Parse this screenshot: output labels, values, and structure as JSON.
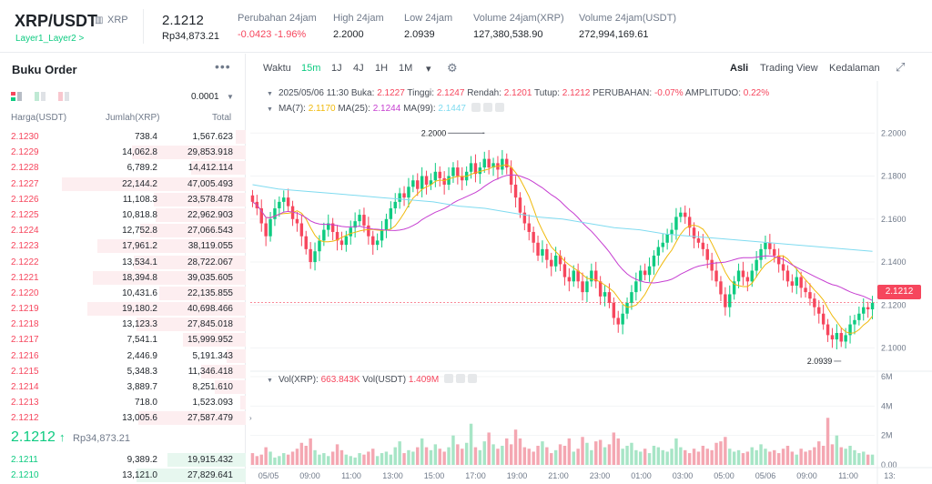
{
  "header": {
    "pair": "XRP/USDT",
    "pair_sub": "XRP",
    "tag": "Layer1_Layer2 >",
    "last_price": "2.1212",
    "last_price_rp": "Rp34,873.21",
    "stats": [
      {
        "label": "Perubahan 24jam",
        "value": "-0.0423 -1.96%",
        "red": true
      },
      {
        "label": "High 24jam",
        "value": "2.2000",
        "red": false
      },
      {
        "label": "Low 24jam",
        "value": "2.0939",
        "red": false
      },
      {
        "label": "Volume 24jam(XRP)",
        "value": "127,380,538.90",
        "red": false
      },
      {
        "label": "Volume 24jam(USDT)",
        "value": "272,994,169.61",
        "red": false
      }
    ]
  },
  "orderbook": {
    "title": "Buku Order",
    "more": "•••",
    "precision": "0.0001",
    "col_price": "Harga(USDT)",
    "col_amount": "Jumlah(XRP)",
    "col_total": "Total",
    "asks": [
      {
        "price": "2.1230",
        "qty": "738.4",
        "total": "1,567.623",
        "depth": 0.05
      },
      {
        "price": "2.1229",
        "qty": "14,062.8",
        "total": "29,853.918",
        "depth": 0.58
      },
      {
        "price": "2.1228",
        "qty": "6,789.2",
        "total": "14,412.114",
        "depth": 0.28
      },
      {
        "price": "2.1227",
        "qty": "22,144.2",
        "total": "47,005.493",
        "depth": 0.94
      },
      {
        "price": "2.1226",
        "qty": "11,108.3",
        "total": "23,578.478",
        "depth": 0.47
      },
      {
        "price": "2.1225",
        "qty": "10,818.8",
        "total": "22,962.903",
        "depth": 0.46
      },
      {
        "price": "2.1224",
        "qty": "12,752.8",
        "total": "27,066.543",
        "depth": 0.54
      },
      {
        "price": "2.1223",
        "qty": "17,961.2",
        "total": "38,119.055",
        "depth": 0.76
      },
      {
        "price": "2.1222",
        "qty": "13,534.1",
        "total": "28,722.067",
        "depth": 0.57
      },
      {
        "price": "2.1221",
        "qty": "18,394.8",
        "total": "39,035.605",
        "depth": 0.78
      },
      {
        "price": "2.1220",
        "qty": "10,431.6",
        "total": "22,135.855",
        "depth": 0.44
      },
      {
        "price": "2.1219",
        "qty": "19,180.2",
        "total": "40,698.466",
        "depth": 0.81
      },
      {
        "price": "2.1218",
        "qty": "13,123.3",
        "total": "27,845.018",
        "depth": 0.56
      },
      {
        "price": "2.1217",
        "qty": "7,541.1",
        "total": "15,999.952",
        "depth": 0.32
      },
      {
        "price": "2.1216",
        "qty": "2,446.9",
        "total": "5,191.343",
        "depth": 0.1
      },
      {
        "price": "2.1215",
        "qty": "5,348.3",
        "total": "11,346.418",
        "depth": 0.23
      },
      {
        "price": "2.1214",
        "qty": "3,889.7",
        "total": "8,251.610",
        "depth": 0.16
      },
      {
        "price": "2.1213",
        "qty": "718.0",
        "total": "1,523.093",
        "depth": 0.03
      },
      {
        "price": "2.1212",
        "qty": "13,005.6",
        "total": "27,587.479",
        "depth": 0.55
      }
    ],
    "last_price": "2.1212",
    "last_arrow": "↑",
    "last_rp": "Rp34,873.21",
    "bids": [
      {
        "price": "2.1211",
        "qty": "9,389.2",
        "total": "19,915.432",
        "depth": 0.4
      },
      {
        "price": "2.1210",
        "qty": "13,121.0",
        "total": "27,829.641",
        "depth": 0.56
      }
    ]
  },
  "toolbar": {
    "items": [
      "Waktu",
      "15m",
      "1J",
      "4J",
      "1H",
      "1M",
      "▾"
    ],
    "active": "15m",
    "right": [
      "Asli",
      "Trading View",
      "Kedalaman"
    ],
    "right_active": "Asli"
  },
  "legend": {
    "date": "2025/05/06 11:30",
    "buka_k": "Buka:",
    "buka": "2.1227",
    "tinggi_k": "Tinggi:",
    "tinggi": "2.1247",
    "rendah_k": "Rendah:",
    "rendah": "2.1201",
    "tutup_k": "Tutup:",
    "tutup": "2.1212",
    "perubahan_k": "PERUBAHAN:",
    "perubahan": "-0.07%",
    "amplitudo_k": "AMPLITUDO:",
    "amplitudo": "0.22%",
    "ma7_k": "MA(7):",
    "ma7": "2.1170",
    "ma25_k": "MA(25):",
    "ma25": "2.1244",
    "ma99_k": "MA(99):",
    "ma99": "2.1447",
    "vol_k": "Vol(XRP):",
    "vol": "663.843K",
    "volu_k": "Vol(USDT)",
    "volu": "1.409M"
  },
  "chart_data": {
    "type": "candlestick",
    "y_ticks": [
      "2.2000",
      "2.1800",
      "2.1600",
      "2.1400",
      "2.1200",
      "2.1000"
    ],
    "ylim": [
      2.0905,
      2.209
    ],
    "vol_ticks": [
      "6M",
      "4M",
      "2M",
      "0.00"
    ],
    "vol_ylim": [
      0,
      6
    ],
    "x_ticks": [
      "05/05",
      "09:00",
      "11:00",
      "13:00",
      "15:00",
      "17:00",
      "19:00",
      "21:00",
      "23:00",
      "01:00",
      "03:00",
      "05:00",
      "05/06",
      "09:00",
      "11:00",
      "13:"
    ],
    "high_label": "2.2000",
    "low_label": "2.0939",
    "current_price_label": "2.1212",
    "colors": {
      "up": "#0ecb81",
      "down": "#f6465d",
      "ma7": "#f0b90b",
      "ma25": "#c63fd1",
      "ma99": "#7fdbf0"
    },
    "close": [
      2.168,
      2.165,
      2.158,
      2.152,
      2.16,
      2.165,
      2.168,
      2.17,
      2.166,
      2.16,
      2.158,
      2.152,
      2.146,
      2.14,
      2.145,
      2.15,
      2.155,
      2.158,
      2.154,
      2.15,
      2.148,
      2.152,
      2.156,
      2.159,
      2.162,
      2.157,
      2.152,
      2.148,
      2.15,
      2.155,
      2.16,
      2.165,
      2.168,
      2.172,
      2.17,
      2.175,
      2.178,
      2.174,
      2.18,
      2.176,
      2.178,
      2.182,
      2.179,
      2.176,
      2.18,
      2.184,
      2.18,
      2.178,
      2.182,
      2.186,
      2.181,
      2.184,
      2.188,
      2.184,
      2.186,
      2.183,
      2.188,
      2.184,
      2.176,
      2.17,
      2.163,
      2.158,
      2.154,
      2.149,
      2.143,
      2.146,
      2.141,
      2.138,
      2.143,
      2.139,
      2.133,
      2.131,
      2.136,
      2.131,
      2.126,
      2.131,
      2.136,
      2.131,
      2.124,
      2.126,
      2.121,
      2.114,
      2.111,
      2.116,
      2.121,
      2.126,
      2.131,
      2.136,
      2.134,
      2.138,
      2.143,
      2.147,
      2.149,
      2.153,
      2.155,
      2.161,
      2.163,
      2.161,
      2.156,
      2.151,
      2.149,
      2.146,
      2.141,
      2.136,
      2.131,
      2.125,
      2.119,
      2.125,
      2.131,
      2.136,
      2.133,
      2.131,
      2.136,
      2.141,
      2.146,
      2.149,
      2.146,
      2.143,
      2.139,
      2.136,
      2.131,
      2.129,
      2.133,
      2.128,
      2.126,
      2.123,
      2.119,
      2.116,
      2.111,
      2.106,
      2.104,
      2.107,
      2.103,
      2.106,
      2.111,
      2.113,
      2.116,
      2.119,
      2.118,
      2.121
    ],
    "volume": [
      0.8,
      0.6,
      0.7,
      1.2,
      0.9,
      0.5,
      0.6,
      0.8,
      0.7,
      0.9,
      1.1,
      1.5,
      1.3,
      1.8,
      1.0,
      0.7,
      0.8,
      0.6,
      0.9,
      1.4,
      1.0,
      0.7,
      0.6,
      0.5,
      0.8,
      0.7,
      0.9,
      1.1,
      0.6,
      0.8,
      0.9,
      0.7,
      1.2,
      1.6,
      0.8,
      1.0,
      0.9,
      1.2,
      1.8,
      1.2,
      1.0,
      1.4,
      1.1,
      0.9,
      1.2,
      2.0,
      1.4,
      1.1,
      1.5,
      2.8,
      1.2,
      1.0,
      1.6,
      2.2,
      1.4,
      1.1,
      1.3,
      1.8,
      1.4,
      2.4,
      1.8,
      1.2,
      1.1,
      0.9,
      1.3,
      1.6,
      1.2,
      0.8,
      1.0,
      1.4,
      1.3,
      1.8,
      0.9,
      1.1,
      1.9,
      1.5,
      1.0,
      1.6,
      1.7,
      1.2,
      1.4,
      2.2,
      1.8,
      1.1,
      1.3,
      1.5,
      1.0,
      0.9,
      1.1,
      0.8,
      1.3,
      1.2,
      1.0,
      0.9,
      1.1,
      1.8,
      1.2,
      1.0,
      0.8,
      1.1,
      0.9,
      1.3,
      1.1,
      1.0,
      1.5,
      1.6,
      1.9,
      1.1,
      0.9,
      1.0,
      0.8,
      0.9,
      1.2,
      1.0,
      1.4,
      1.1,
      0.9,
      1.0,
      0.8,
      1.1,
      1.3,
      0.9,
      0.7,
      1.1,
      0.9,
      1.0,
      1.2,
      1.6,
      1.3,
      3.2,
      1.4,
      2.0,
      1.2,
      1.1,
      1.3,
      1.0,
      0.8,
      0.9,
      0.7,
      0.7
    ],
    "ma99": [
      2.176,
      2.174,
      2.173,
      2.172,
      2.171,
      2.17,
      2.169,
      2.168,
      2.166,
      2.165,
      2.163,
      2.161,
      2.16,
      2.158,
      2.156,
      2.155,
      2.153,
      2.152,
      2.151,
      2.15,
      2.149,
      2.148,
      2.147,
      2.146,
      2.145
    ]
  }
}
